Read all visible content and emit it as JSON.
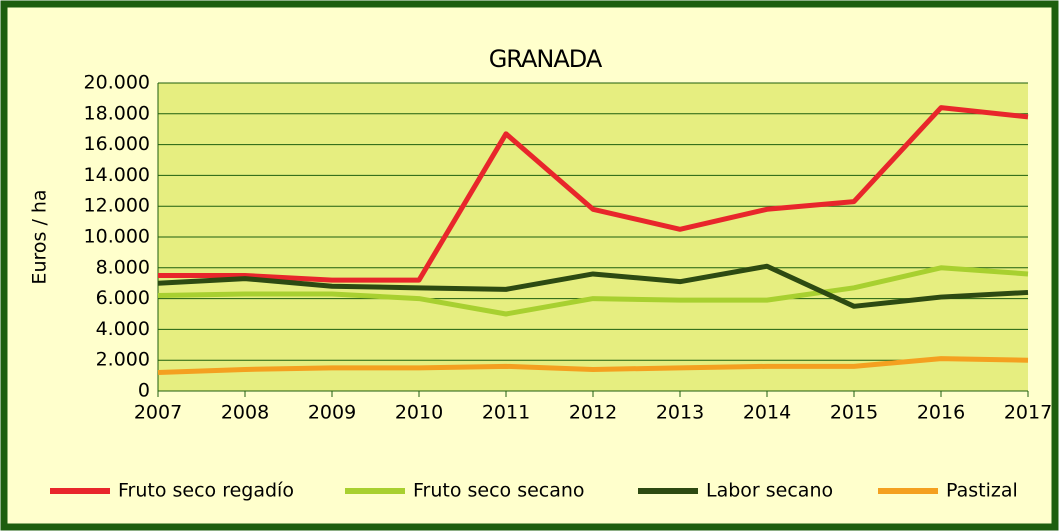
{
  "chart_data": {
    "type": "line",
    "title": "GRANADA",
    "y_label": "Euros / ha",
    "categories": [
      "2007",
      "2008",
      "2009",
      "2010",
      "2011",
      "2012",
      "2013",
      "2014",
      "2015",
      "2016",
      "2017"
    ],
    "series": [
      {
        "name": "Fruto seco regadío",
        "color": "#e8262b",
        "values": [
          7500,
          7500,
          7200,
          7200,
          16700,
          11800,
          10500,
          11800,
          12300,
          18400,
          17800
        ]
      },
      {
        "name": "Fruto seco secano",
        "color": "#a8d030",
        "values": [
          6200,
          6300,
          6300,
          6000,
          5000,
          6000,
          5900,
          5900,
          6700,
          8000,
          7600
        ]
      },
      {
        "name": "Labor secano",
        "color": "#2d4a12",
        "values": [
          7000,
          7300,
          6800,
          6700,
          6600,
          7600,
          7100,
          8100,
          5500,
          6100,
          6400
        ]
      },
      {
        "name": "Pastizal",
        "color": "#f4a020",
        "values": [
          1200,
          1400,
          1500,
          1500,
          1600,
          1400,
          1500,
          1600,
          1600,
          2100,
          2000
        ]
      }
    ],
    "ylim": [
      0,
      20000
    ],
    "yticks": [
      0,
      {
        "value": 2000,
        "label": "2.000"
      },
      {
        "value": 4000,
        "label": "4.000"
      },
      {
        "value": 6000,
        "label": "6.000"
      },
      {
        "value": 8000,
        "label": "8.000"
      },
      {
        "value": 10000,
        "label": "10.000"
      },
      {
        "value": 12000,
        "label": "12.000"
      },
      {
        "value": 14000,
        "label": "14.000"
      },
      {
        "value": 16000,
        "label": "16.000"
      },
      {
        "value": 18000,
        "label": "18.000"
      },
      {
        "value": 20000,
        "label": "20.000"
      }
    ],
    "grid": true,
    "legend": "bottom"
  }
}
